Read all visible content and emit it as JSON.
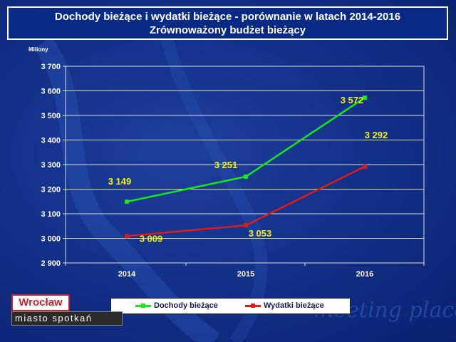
{
  "title": {
    "line1": "Dochody bieżące i wydatki bieżące - porównanie w latach 2014-2016",
    "line2": "Zrównoważony budżet bieżący"
  },
  "unit_label": "Miliony",
  "colors": {
    "dochody": "#19e619",
    "wydatki": "#e01919",
    "labels": "#f2f20a",
    "axis_text": "#ffffff"
  },
  "chart_data": {
    "type": "line",
    "categories": [
      "2014",
      "2015",
      "2016"
    ],
    "series": [
      {
        "name": "Dochody bieżące",
        "values": [
          3149,
          3251,
          3572
        ],
        "labels": [
          "3 149",
          "3 251",
          "3 572"
        ]
      },
      {
        "name": "Wydatki bieżące",
        "values": [
          3009,
          3053,
          3292
        ],
        "labels": [
          "3 009",
          "3 053",
          "3 292"
        ]
      }
    ],
    "ylim": [
      2900,
      3700
    ],
    "yticks": [
      2900,
      3000,
      3100,
      3200,
      3300,
      3400,
      3500,
      3600,
      3700
    ],
    "ytick_labels": [
      "2 900",
      "3 000",
      "3 100",
      "3 200",
      "3 300",
      "3 400",
      "3 500",
      "3 600",
      "3 700"
    ],
    "grid": true,
    "legend": "bottom"
  },
  "logo": {
    "top_text": "Wrocław",
    "bottom_text": "miasto spotkań"
  },
  "background_text": "meeting place"
}
